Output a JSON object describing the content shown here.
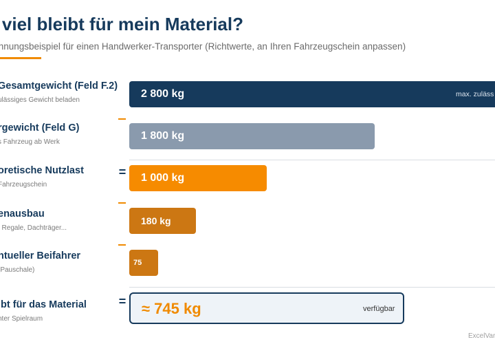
{
  "header": {
    "title": "ie viel bleibt für mein Material?",
    "subtitle": "chnungsbeispiel für einen Handwerker-Transporter (Richtwerte, an Ihren Fahrzeugschein anpassen)"
  },
  "rows": [
    {
      "title": "Gesamtgewicht (Feld F.2)",
      "desc": "ulässiges Gewicht beladen",
      "bar_value": "2 800 kg",
      "bar_note": "max. zuläss",
      "bar_color": "#163a5c"
    },
    {
      "title": "rgewicht (Feld G)",
      "desc": "s Fahrzeug ab Werk",
      "operator": "-",
      "bar_value": "1 800 kg",
      "bar_color": "#8a9aad"
    },
    {
      "title": "oretische Nutzlast",
      "desc": "Fahrzeugschein",
      "operator": "=",
      "bar_value": "1 000 kg",
      "bar_color": "#f68b00"
    },
    {
      "title": "enausbau",
      "desc": ", Regale, Dachträger...",
      "operator": "-",
      "bar_value": "180 kg",
      "bar_color": "#cc7713"
    },
    {
      "title": "ntueller Beifahrer",
      "desc": "(Pauschale)",
      "operator": "-",
      "bar_value": "75",
      "bar_color": "#cc7713"
    }
  ],
  "result": {
    "title": "ibt für das Material",
    "desc": "hter Spielraum",
    "operator": "=",
    "value": "≈ 745 kg",
    "note": "verfügbar",
    "value_color": "#f08a00",
    "border_color": "#163a5c"
  },
  "footer": {
    "brand": "ExcelVar"
  }
}
